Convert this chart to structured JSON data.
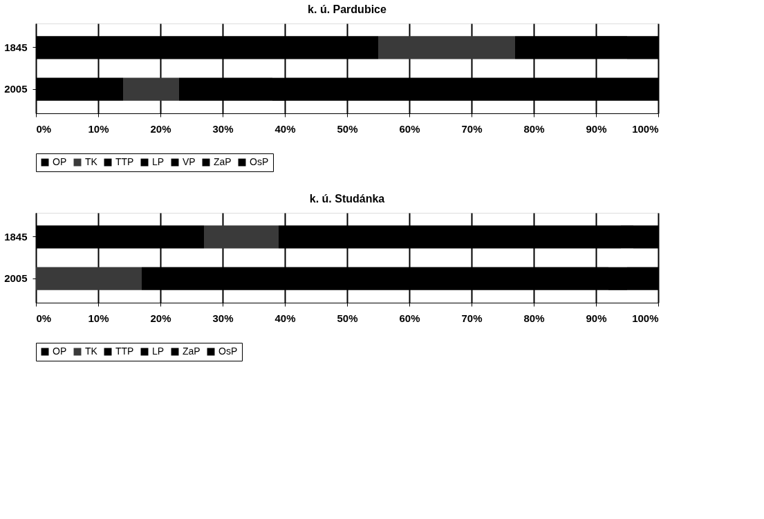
{
  "chart_data": [
    {
      "type": "bar",
      "orientation": "horizontal",
      "stacked": true,
      "title": "k. ú. Pardubice",
      "categories": [
        "1845",
        "2005"
      ],
      "series": [
        {
          "name": "OP",
          "color": "#000000",
          "values": [
            55,
            14
          ]
        },
        {
          "name": "TK",
          "color": "#3a3a3a",
          "values": [
            22,
            9
          ]
        },
        {
          "name": "TTP",
          "color": "#000000",
          "values": [
            8,
            10
          ]
        },
        {
          "name": "LP",
          "color": "#000000",
          "values": [
            5,
            5
          ]
        },
        {
          "name": "VP",
          "color": "#000000",
          "values": [
            3,
            2
          ]
        },
        {
          "name": "ZaP",
          "color": "#000000",
          "values": [
            2,
            50
          ]
        },
        {
          "name": "OsP",
          "color": "#000000",
          "values": [
            5,
            10
          ]
        }
      ],
      "xlim": [
        0,
        100
      ],
      "xticks": [
        {
          "value": 0,
          "label": "0%"
        },
        {
          "value": 10,
          "label": "10%"
        },
        {
          "value": 20,
          "label": "20%"
        },
        {
          "value": 30,
          "label": "30%"
        },
        {
          "value": 40,
          "label": "40%"
        },
        {
          "value": 50,
          "label": "50%"
        },
        {
          "value": 60,
          "label": "60%"
        },
        {
          "value": 70,
          "label": "70%"
        },
        {
          "value": 80,
          "label": "80%"
        },
        {
          "value": 90,
          "label": "90%"
        },
        {
          "value": 100,
          "label": "100%"
        }
      ],
      "grid": "x",
      "legend": "bottom"
    },
    {
      "type": "bar",
      "orientation": "horizontal",
      "stacked": true,
      "title": "k. ú. Studánka",
      "categories": [
        "1845",
        "2005"
      ],
      "series": [
        {
          "name": "OP",
          "color": "#000000",
          "values": [
            27,
            0
          ]
        },
        {
          "name": "TK",
          "color": "#3a3a3a",
          "values": [
            12,
            17
          ]
        },
        {
          "name": "TTP",
          "color": "#000000",
          "values": [
            20,
            30
          ]
        },
        {
          "name": "LP",
          "color": "#000000",
          "values": [
            35,
            45
          ]
        },
        {
          "name": "ZaP",
          "color": "#000000",
          "values": [
            2,
            3
          ]
        },
        {
          "name": "OsP",
          "color": "#000000",
          "values": [
            4,
            5
          ]
        }
      ],
      "xlim": [
        0,
        100
      ],
      "xticks": [
        {
          "value": 0,
          "label": "0%"
        },
        {
          "value": 10,
          "label": "10%"
        },
        {
          "value": 20,
          "label": "20%"
        },
        {
          "value": 30,
          "label": "30%"
        },
        {
          "value": 40,
          "label": "40%"
        },
        {
          "value": 50,
          "label": "50%"
        },
        {
          "value": 60,
          "label": "60%"
        },
        {
          "value": 70,
          "label": "70%"
        },
        {
          "value": 80,
          "label": "80%"
        },
        {
          "value": 90,
          "label": "90%"
        },
        {
          "value": 100,
          "label": "100%"
        }
      ],
      "grid": "x",
      "legend": "bottom"
    }
  ]
}
